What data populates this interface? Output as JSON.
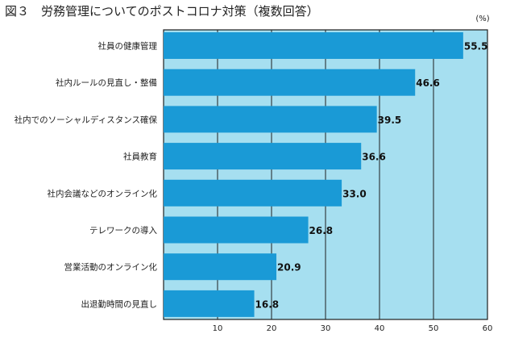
{
  "chart_data": {
    "type": "bar",
    "orientation": "horizontal",
    "figure_label": "図３",
    "title": "労務管理についてのポストコロナ対策（複数回答）",
    "unit": "(%)",
    "categories": [
      "社員の健康管理",
      "社内ルールの見直し・整備",
      "社内でのソーシャルディスタンス確保",
      "社員教育",
      "社内会議などのオンライン化",
      "テレワークの導入",
      "営業活動のオンライン化",
      "出退勤時間の見直し"
    ],
    "values": [
      55.5,
      46.6,
      39.5,
      36.6,
      33.0,
      26.8,
      20.9,
      16.8
    ],
    "value_labels": [
      "55.5",
      "46.6",
      "39.5",
      "36.6",
      "33.0",
      "26.8",
      "20.9",
      "16.8"
    ],
    "xlim": [
      0,
      60
    ],
    "xticks": [
      10,
      20,
      30,
      40,
      50,
      60
    ],
    "grid": true,
    "colors": {
      "bar": "#1a9ad6",
      "plot_background": "#a6dff0",
      "grid": "#1f1f1f",
      "frame": "#1f1f1f"
    }
  }
}
